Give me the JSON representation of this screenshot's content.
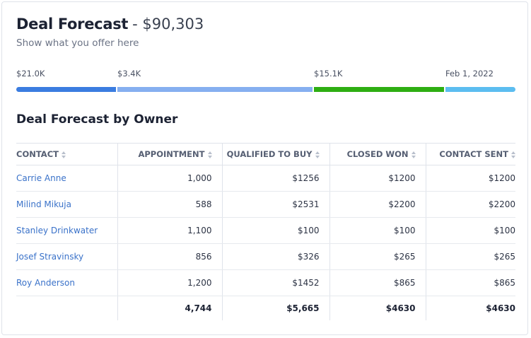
{
  "header": {
    "title": "Deal Forecast",
    "amount": "- $90,303",
    "subtitle": "Show what you offer here"
  },
  "progress": {
    "labels": [
      "$21.0K",
      "$3.4K",
      "$15.1K",
      "Feb 1, 2022"
    ]
  },
  "table": {
    "title": "Deal Forecast by Owner",
    "columns": [
      "CONTACT",
      "APPOINTMENT",
      "QUALIFIED TO BUY",
      "CLOSED WON",
      "CONTACT SENT"
    ],
    "rows": [
      [
        "Carrie Anne",
        "1,000",
        "$1256",
        "$1200",
        "$1200"
      ],
      [
        "Milind Mikuja",
        "588",
        "$2531",
        "$2200",
        "$2200"
      ],
      [
        "Stanley Drinkwater",
        "1,100",
        "$100",
        "$100",
        "$100"
      ],
      [
        "Josef Stravinsky",
        "856",
        "$326",
        "$265",
        "$265"
      ],
      [
        "Roy Anderson",
        "1,200",
        "$1452",
        "$865",
        "$865"
      ]
    ],
    "totals": [
      "4,744",
      "$5,665",
      "$4630",
      "$4630"
    ]
  }
}
